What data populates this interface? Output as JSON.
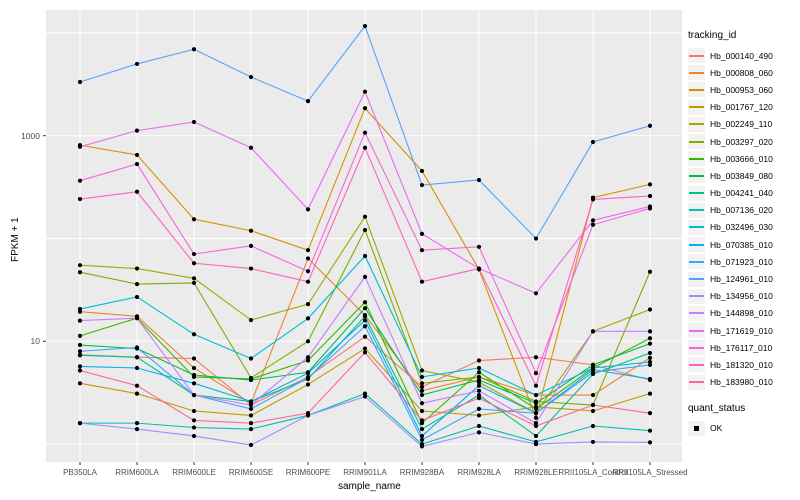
{
  "figure": {
    "x_axis_title": "sample_name",
    "y_axis_title": "FPKM + 1",
    "legend": {
      "color_title": "tracking_id",
      "shape_title": "quant_status",
      "shape_item_label": "OK"
    }
  },
  "chart_data": {
    "type": "line",
    "x_label": "sample_name",
    "y_label": "FPKM + 1",
    "y_scale": "log10",
    "grid": "on",
    "legend_position": "right",
    "panel_bg": "#ebebeb",
    "grid_color": "#ffffff",
    "point_color": "#000000",
    "axis_text_color": "#4d4d4d",
    "y_axis_ticks": [
      {
        "label": "1000",
        "value": 1000
      },
      {
        "label": "10",
        "value": 10
      }
    ],
    "y_gridline_values": [
      1,
      10,
      100,
      1000,
      10000
    ],
    "ylim": [
      0.85,
      14000
    ],
    "x_categories": [
      "PB350LA",
      "RRIM600LA",
      "RRIM600LE",
      "RRIM600SE",
      "RRIM600PE",
      "RRIM901LA",
      "RRIM928BA",
      "RRIM928LA",
      "RRIM928LE",
      "RRII105LA_Control",
      "RRII105LA_Stressed"
    ],
    "series": [
      {
        "name": "Hb_000140_490",
        "color": "#F8766D",
        "values": [
          7.4,
          7.0,
          6.8,
          2.4,
          4.5,
          11.1,
          3.6,
          6.5,
          7.0,
          5.9,
          4.2
        ]
      },
      {
        "name": "Hb_000808_060",
        "color": "#EA8331",
        "values": [
          19.4,
          17.5,
          5.5,
          2.5,
          64,
          18,
          3.3,
          4.5,
          3.0,
          3.0,
          6.9
        ]
      },
      {
        "name": "Hb_000953_060",
        "color": "#D89000",
        "values": [
          810,
          650,
          154,
          119,
          77,
          1850,
          454,
          50,
          1.8,
          250,
          336
        ]
      },
      {
        "name": "Hb_001767_120",
        "color": "#C09B00",
        "values": [
          3.9,
          3.1,
          2.1,
          1.9,
          3.8,
          8.5,
          2.1,
          1.9,
          2.3,
          2.1,
          3.1
        ]
      },
      {
        "name": "Hb_002249_110",
        "color": "#A3A500",
        "values": [
          55,
          51,
          41,
          16.1,
          23,
          163,
          5.2,
          4.0,
          2.0,
          12.5,
          20.4
        ]
      },
      {
        "name": "Hb_003297_020",
        "color": "#7CAE00",
        "values": [
          47,
          36,
          37,
          4.4,
          10,
          121,
          3.9,
          4.5,
          2.6,
          2.4,
          47.5
        ]
      },
      {
        "name": "Hb_003666_010",
        "color": "#39B600",
        "values": [
          11.3,
          16.8,
          4.5,
          4.3,
          6.5,
          24,
          1.6,
          5.0,
          2.2,
          5.5,
          10.7
        ]
      },
      {
        "name": "Hb_003849_080",
        "color": "#00BB4E",
        "values": [
          9.2,
          8.5,
          4.7,
          4.2,
          5.0,
          21,
          3.0,
          4.2,
          2.5,
          5.9,
          9.5
        ]
      },
      {
        "name": "Hb_004241_040",
        "color": "#00C087",
        "values": [
          7.3,
          7.0,
          3.0,
          2.6,
          4.3,
          17.5,
          1.4,
          3.0,
          1.2,
          4.8,
          7.7
        ]
      },
      {
        "name": "Hb_007136_020",
        "color": "#00C0AF",
        "values": [
          1.6,
          1.6,
          1.45,
          1.4,
          1.9,
          3.1,
          1.0,
          1.5,
          1.05,
          1.5,
          1.35
        ]
      },
      {
        "name": "Hb_032496_030",
        "color": "#00BCD8",
        "values": [
          20.6,
          27,
          11.7,
          6.8,
          16.7,
          67.6,
          4.5,
          5.5,
          3.0,
          5.5,
          6.3
        ]
      },
      {
        "name": "Hb_070385_010",
        "color": "#00B0F6",
        "values": [
          5.7,
          5.5,
          3.9,
          2.6,
          4.9,
          16,
          1.2,
          3.7,
          2.0,
          5.3,
          4.3
        ]
      },
      {
        "name": "Hb_071923_010",
        "color": "#3DA1FF",
        "values": [
          8.0,
          8.7,
          3.0,
          2.2,
          4.4,
          14,
          1.1,
          2.2,
          2.0,
          5.0,
          5.9
        ]
      },
      {
        "name": "Hb_124961_010",
        "color": "#55A2FA",
        "values": [
          3330,
          4990,
          6930,
          3720,
          2170,
          11670,
          331,
          371,
          100,
          868,
          1250
        ]
      },
      {
        "name": "Hb_134956_010",
        "color": "#9590FF",
        "values": [
          1.6,
          1.4,
          1.2,
          0.98,
          1.9,
          2.9,
          0.95,
          1.3,
          1.0,
          1.05,
          1.04
        ]
      },
      {
        "name": "Hb_144898_010",
        "color": "#C77CFF",
        "values": [
          15.9,
          16.8,
          3.0,
          2.4,
          7.0,
          42.3,
          2.5,
          3.3,
          1.6,
          12.5,
          12.5
        ]
      },
      {
        "name": "Hb_171619_010",
        "color": "#E76BF3",
        "values": [
          781,
          1120,
          1360,
          764,
          192,
          2680,
          111,
          51,
          29.3,
          150,
          205
        ]
      },
      {
        "name": "Hb_176117_010",
        "color": "#FA62DB",
        "values": [
          365,
          530,
          70.6,
          84.8,
          48,
          1070,
          77,
          83,
          4.9,
          136,
          196
        ]
      },
      {
        "name": "Hb_181320_010",
        "color": "#FF61C3",
        "values": [
          242,
          285,
          57.4,
          51,
          38,
          763,
          38,
          51,
          3.7,
          240,
          259
        ]
      },
      {
        "name": "Hb_183980_010",
        "color": "#FF6591",
        "values": [
          5.2,
          3.7,
          1.7,
          1.6,
          2.0,
          7.8,
          1.7,
          2.8,
          1.5,
          2.4,
          2.0
        ]
      }
    ]
  }
}
